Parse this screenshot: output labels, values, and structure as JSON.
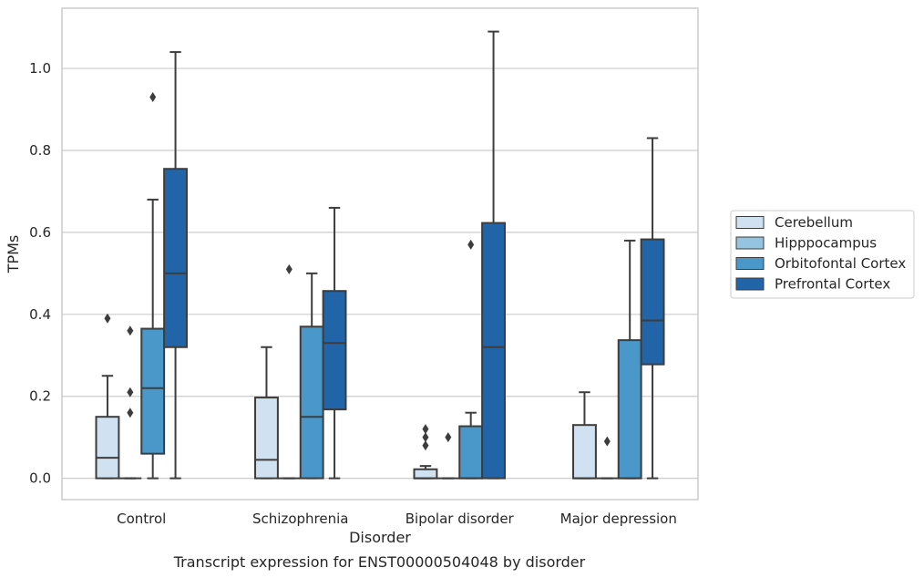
{
  "chart_data": {
    "type": "box",
    "caption": "Transcript expression for ENST00000504048 by disorder",
    "xlabel": "Disorder",
    "ylabel": "TPMs",
    "ylim": [
      -0.052,
      1.147
    ],
    "yticks": [
      0.0,
      0.2,
      0.4,
      0.6,
      0.8,
      1.0
    ],
    "ytick_labels": [
      "0.0",
      "0.2",
      "0.4",
      "0.6",
      "0.8",
      "1.0"
    ],
    "grid": "horizontal",
    "legend_position": "right",
    "categories": [
      "Control",
      "Schizophrenia",
      "Bipolar disorder",
      "Major depression"
    ],
    "series": [
      {
        "name": "Cerebellum",
        "color": "#d0e1f2",
        "boxes": [
          {
            "whislo": 0.0,
            "q1": 0.0,
            "med": 0.05,
            "q3": 0.15,
            "whishi": 0.25,
            "fliers": [
              0.39
            ]
          },
          {
            "whislo": 0.0,
            "q1": 0.0,
            "med": 0.045,
            "q3": 0.197,
            "whishi": 0.32,
            "fliers": []
          },
          {
            "whislo": 0.0,
            "q1": 0.0,
            "med": 0.0,
            "q3": 0.022,
            "whishi": 0.03,
            "fliers": [
              0.08,
              0.1,
              0.12
            ]
          },
          {
            "whislo": 0.0,
            "q1": 0.0,
            "med": 0.0,
            "q3": 0.13,
            "whishi": 0.21,
            "fliers": []
          }
        ]
      },
      {
        "name": "Hipppocampus",
        "color": "#94c4df",
        "boxes": [
          {
            "whislo": 0.0,
            "q1": 0.0,
            "med": 0.0,
            "q3": 0.0,
            "whishi": 0.0,
            "fliers": [
              0.16,
              0.21,
              0.36
            ]
          },
          {
            "whislo": 0.0,
            "q1": 0.0,
            "med": 0.0,
            "q3": 0.0,
            "whishi": 0.0,
            "fliers": [
              0.51
            ]
          },
          {
            "whislo": 0.0,
            "q1": 0.0,
            "med": 0.0,
            "q3": 0.0,
            "whishi": 0.0,
            "fliers": [
              0.1
            ]
          },
          {
            "whislo": 0.0,
            "q1": 0.0,
            "med": 0.0,
            "q3": 0.0,
            "whishi": 0.0,
            "fliers": [
              0.09
            ]
          }
        ]
      },
      {
        "name": "Orbitofontal Cortex",
        "color": "#4a98c9",
        "boxes": [
          {
            "whislo": 0.0,
            "q1": 0.06,
            "med": 0.22,
            "q3": 0.365,
            "whishi": 0.68,
            "fliers": [
              0.93
            ]
          },
          {
            "whislo": 0.0,
            "q1": 0.0,
            "med": 0.15,
            "q3": 0.37,
            "whishi": 0.5,
            "fliers": []
          },
          {
            "whislo": 0.0,
            "q1": 0.0,
            "med": 0.0,
            "q3": 0.127,
            "whishi": 0.16,
            "fliers": [
              0.57
            ]
          },
          {
            "whislo": 0.0,
            "q1": 0.0,
            "med": 0.0,
            "q3": 0.337,
            "whishi": 0.58,
            "fliers": []
          }
        ]
      },
      {
        "name": "Prefrontal Cortex",
        "color": "#2264a8",
        "boxes": [
          {
            "whislo": 0.0,
            "q1": 0.32,
            "med": 0.5,
            "q3": 0.755,
            "whishi": 1.04,
            "fliers": []
          },
          {
            "whislo": 0.0,
            "q1": 0.168,
            "med": 0.33,
            "q3": 0.457,
            "whishi": 0.66,
            "fliers": []
          },
          {
            "whislo": 0.0,
            "q1": 0.0,
            "med": 0.32,
            "q3": 0.623,
            "whishi": 1.09,
            "fliers": []
          },
          {
            "whislo": 0.0,
            "q1": 0.278,
            "med": 0.385,
            "q3": 0.583,
            "whishi": 0.83,
            "fliers": []
          }
        ]
      }
    ]
  }
}
